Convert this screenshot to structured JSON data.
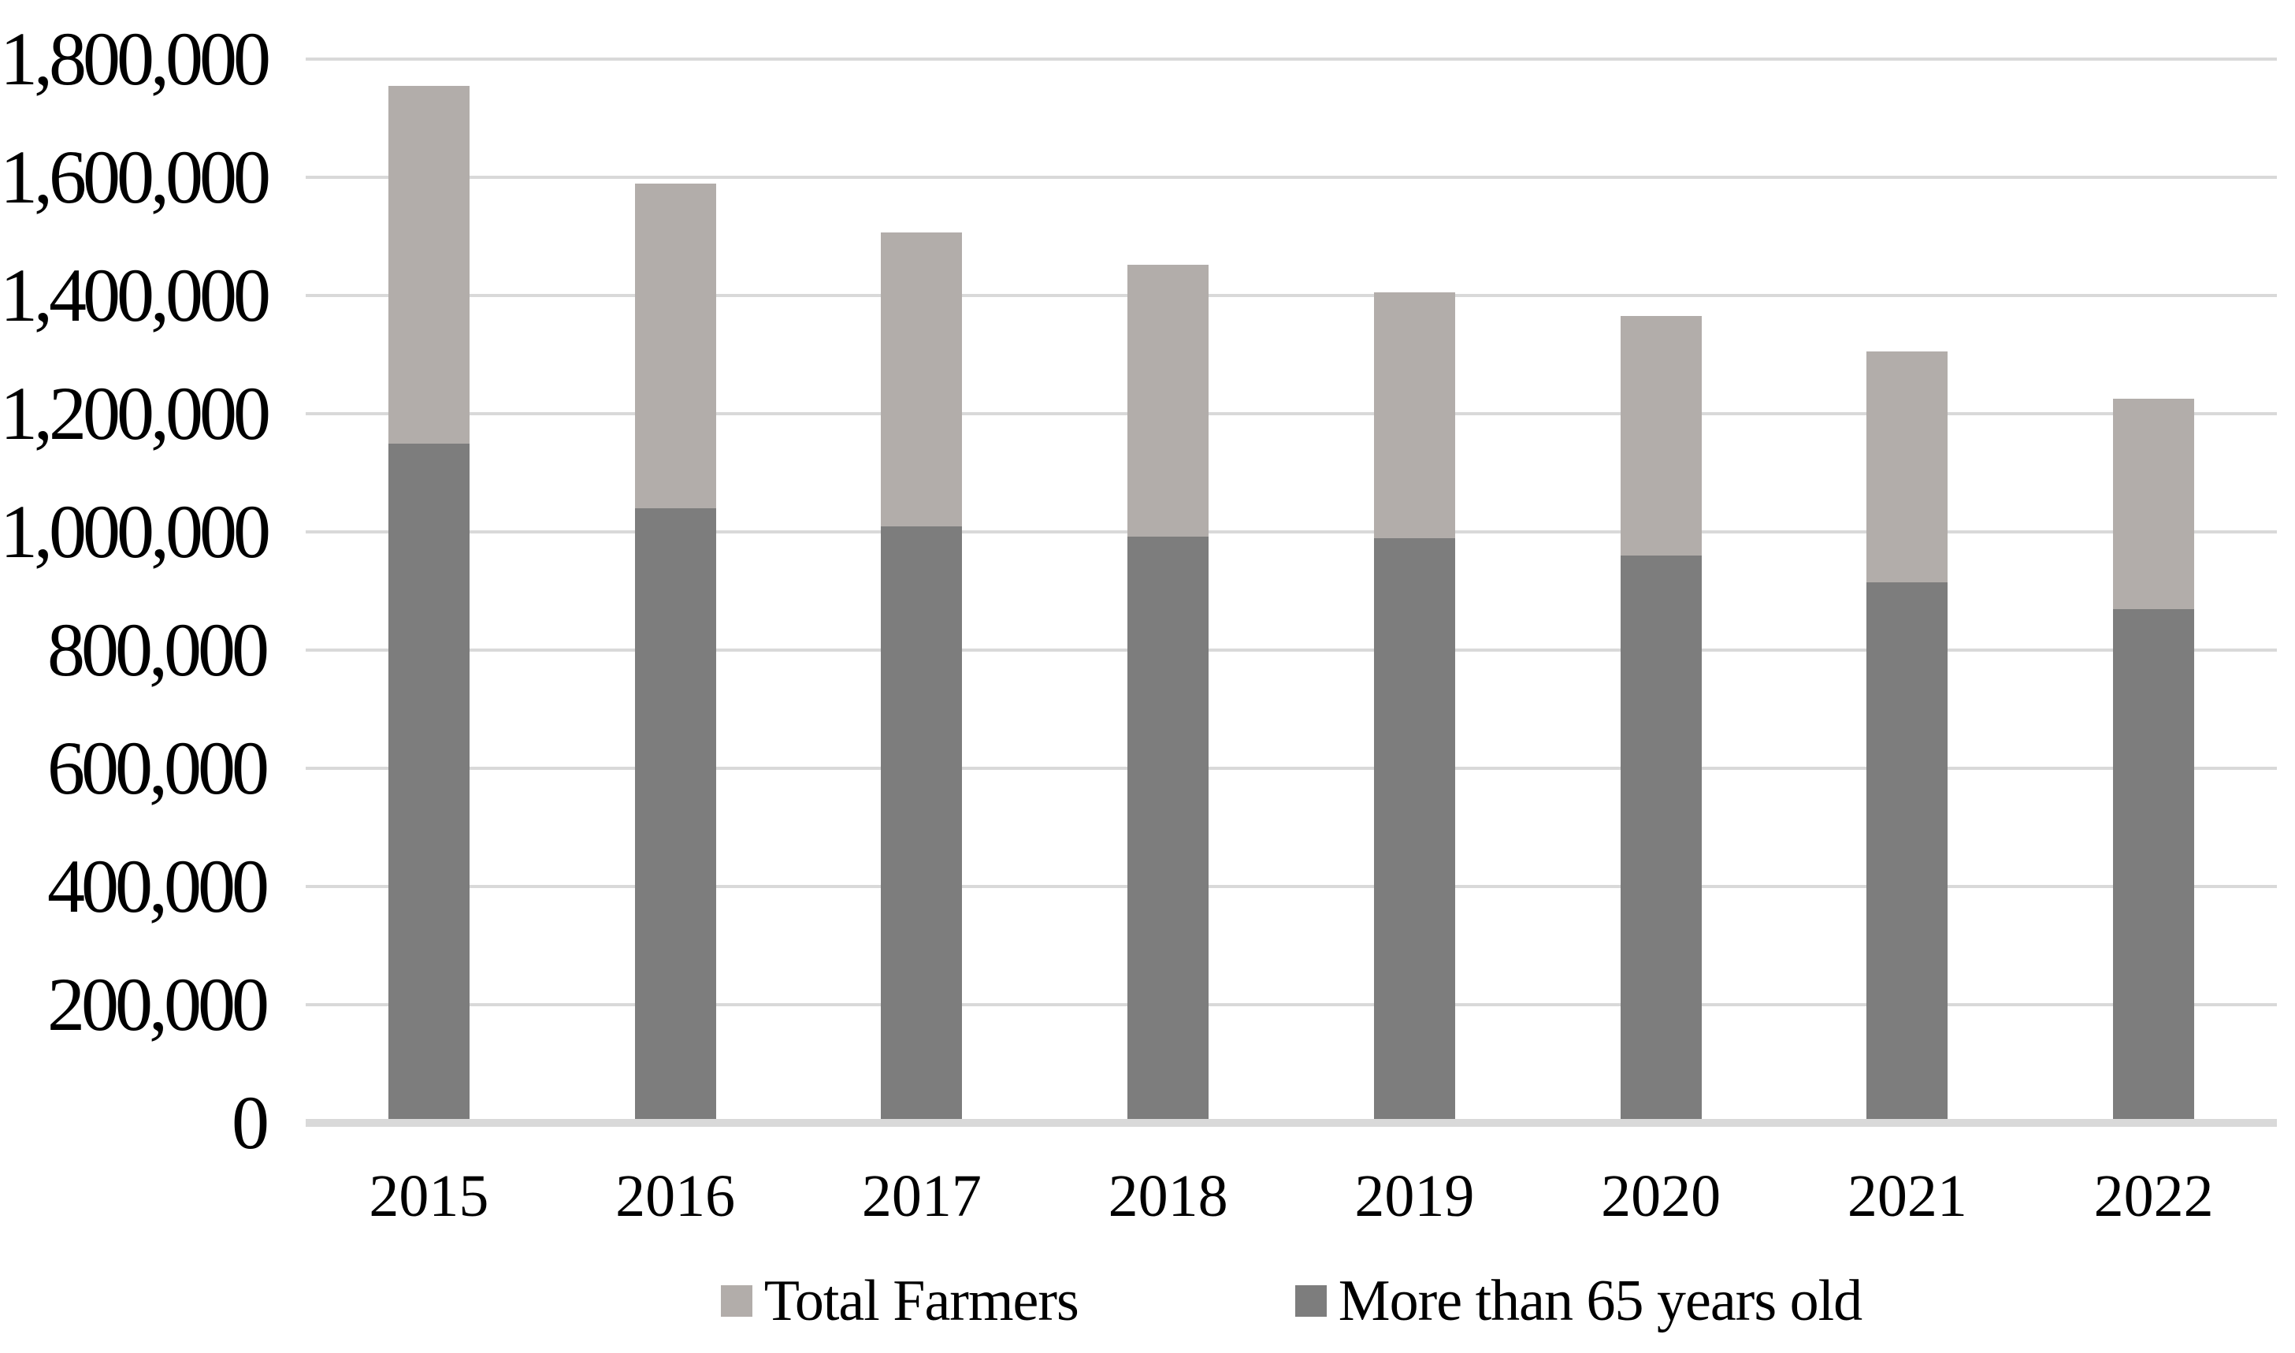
{
  "chart_data": {
    "type": "bar",
    "subtype": "overlay-columns",
    "title": "",
    "xlabel": "",
    "ylabel": "",
    "categories": [
      "2015",
      "2016",
      "2017",
      "2018",
      "2019",
      "2020",
      "2021",
      "2022"
    ],
    "series": [
      {
        "name": "Total Farmers",
        "color": "#b2adaa",
        "values": [
          1755000,
          1590000,
          1507000,
          1452000,
          1405000,
          1365000,
          1305000,
          1226000
        ]
      },
      {
        "name": "More than 65 years old",
        "color": "#7d7d7d",
        "values": [
          1150000,
          1040000,
          1009000,
          992000,
          990000,
          960000,
          915000,
          870000
        ]
      }
    ],
    "ylim": [
      0,
      1800000
    ],
    "ytick_step": 200000,
    "ytick_labels": [
      "0",
      "200,000",
      "400,000",
      "600,000",
      "800,000",
      "1,000,000",
      "1,200,000",
      "1,400,000",
      "1,600,000",
      "1,800,000"
    ],
    "grid": "horizontal",
    "gridline_color": "#d9d9d9",
    "axis_line_color": "#d9d9d9",
    "text_color": "#000000",
    "background_color": "#ffffff",
    "legend_position": "bottom-center"
  },
  "legend": {
    "items": [
      {
        "label": "Total Farmers"
      },
      {
        "label": "More than 65 years old"
      }
    ]
  }
}
